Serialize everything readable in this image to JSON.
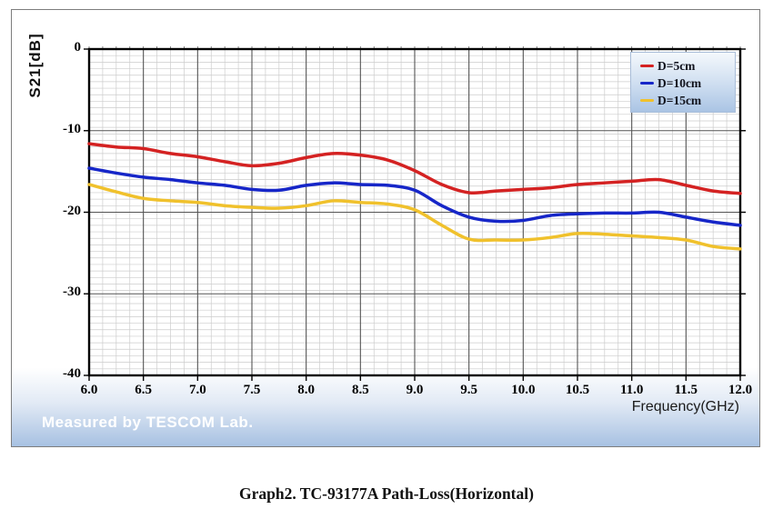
{
  "figure": {
    "y_axis_label": "S21[dB]",
    "x_axis_label": "Frequency(GHz)",
    "watermark": "Measured by TESCOM Lab.",
    "caption": "Graph2. TC-93177A Path-Loss(Horizontal)"
  },
  "chart_data": {
    "type": "line",
    "title": "",
    "xlabel": "Frequency(GHz)",
    "ylabel": "S21[dB]",
    "xlim": [
      6.0,
      12.0
    ],
    "ylim": [
      -40,
      0
    ],
    "x_ticks": [
      "6.0",
      "6.5",
      "7.0",
      "7.5",
      "8.0",
      "8.5",
      "9.0",
      "9.5",
      "10.0",
      "10.5",
      "11.0",
      "11.5",
      "12.0"
    ],
    "y_ticks": [
      "0",
      "-10",
      "-20",
      "-30",
      "-40"
    ],
    "grid": "major+minor",
    "legend_position": "top-right",
    "x": [
      6.0,
      6.25,
      6.5,
      6.75,
      7.0,
      7.25,
      7.5,
      7.75,
      8.0,
      8.25,
      8.5,
      8.75,
      9.0,
      9.25,
      9.5,
      9.75,
      10.0,
      10.25,
      10.5,
      10.75,
      11.0,
      11.25,
      11.5,
      11.75,
      12.0
    ],
    "series": [
      {
        "name": "D=5cm",
        "color": "#d42222",
        "values": [
          -11.6,
          -12.0,
          -12.2,
          -12.8,
          -13.2,
          -13.8,
          -14.3,
          -14.0,
          -13.3,
          -12.8,
          -13.0,
          -13.6,
          -14.9,
          -16.6,
          -17.6,
          -17.4,
          -17.2,
          -17.0,
          -16.6,
          -16.4,
          -16.2,
          -16.0,
          -16.7,
          -17.4,
          -17.7
        ]
      },
      {
        "name": "D=10cm",
        "color": "#1626c8",
        "values": [
          -14.6,
          -15.2,
          -15.7,
          -16.0,
          -16.4,
          -16.7,
          -17.2,
          -17.3,
          -16.7,
          -16.4,
          -16.6,
          -16.7,
          -17.3,
          -19.2,
          -20.6,
          -21.1,
          -21.0,
          -20.4,
          -20.2,
          -20.1,
          -20.1,
          -20.0,
          -20.6,
          -21.2,
          -21.6
        ]
      },
      {
        "name": "D=15cm",
        "color": "#f0c12c",
        "values": [
          -16.6,
          -17.5,
          -18.3,
          -18.6,
          -18.8,
          -19.2,
          -19.4,
          -19.5,
          -19.2,
          -18.6,
          -18.8,
          -19.0,
          -19.7,
          -21.6,
          -23.3,
          -23.4,
          -23.4,
          -23.1,
          -22.6,
          -22.7,
          -22.9,
          -23.1,
          -23.4,
          -24.2,
          -24.5
        ]
      }
    ],
    "style": {
      "minor_grid_color": "#cccccc",
      "major_grid_color": "#555555",
      "frame_color": "#000000",
      "legend_bg_top": "#f4f8fc",
      "legend_bg_bottom": "#aac4e4"
    }
  }
}
